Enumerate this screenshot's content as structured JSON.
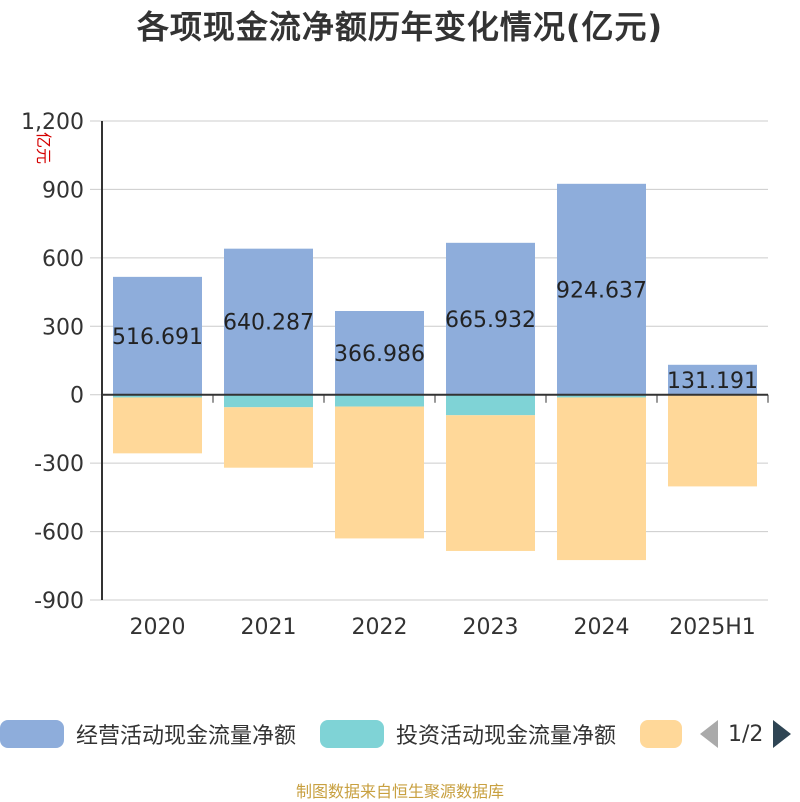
{
  "title": "各项现金流净额历年变化情况(亿元)",
  "footer": "制图数据来自恒生聚源数据库",
  "pager": "1/2",
  "colors": {
    "operating": "#8eaddb",
    "investing": "#7fd3d6",
    "financing": "#ffd899",
    "grid": "#cccccc",
    "axis": "#333333",
    "unit": "#d40000",
    "arrow_active": "#2f4554",
    "arrow_inactive": "#aaaaaa"
  },
  "chart_data": {
    "type": "bar",
    "stacked": true,
    "categories": [
      "2020",
      "2021",
      "2022",
      "2023",
      "2024",
      "2025H1"
    ],
    "ylabel": "亿元",
    "ylim": [
      -900,
      1200
    ],
    "yticks": [
      1200,
      900,
      600,
      300,
      0,
      -300,
      -600,
      -900
    ],
    "ytick_labels": [
      "1,200",
      "900",
      "600",
      "300",
      "0",
      "-300",
      "-600",
      "-900"
    ],
    "grid": true,
    "legend_position": "bottom",
    "series": [
      {
        "name": "经营活动现金流量净额",
        "color_key": "operating",
        "values": [
          516.691,
          640.287,
          366.986,
          665.932,
          924.637,
          131.191
        ],
        "labels": [
          "516.691",
          "640.287",
          "366.986",
          "665.932",
          "924.637",
          "131.191"
        ]
      },
      {
        "name": "投资活动现金流量净额",
        "color_key": "investing",
        "values": [
          -12,
          -55,
          -52,
          -90,
          -12,
          -2
        ]
      },
      {
        "name": "",
        "color_key": "financing",
        "values": [
          -245,
          -265,
          -578,
          -595,
          -713,
          -400
        ]
      }
    ]
  }
}
